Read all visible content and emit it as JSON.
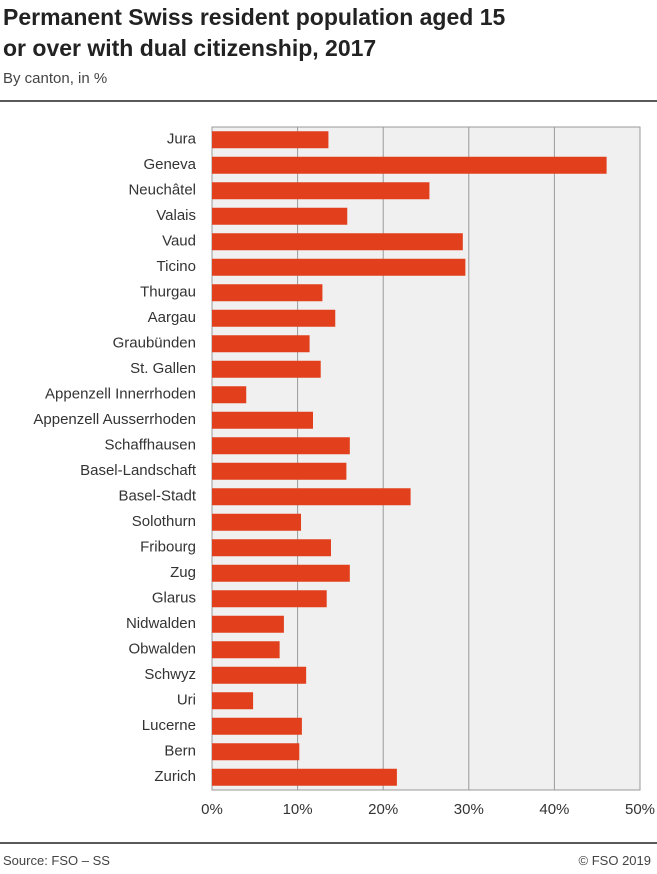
{
  "chart_data": {
    "type": "bar",
    "orientation": "horizontal",
    "title": "Permanent Swiss resident population aged 15 or over with dual citizenship, 2017",
    "subtitle": "By canton, in %",
    "source": "Source: FSO – SS",
    "copyright": "© FSO 2019",
    "categories": [
      "Jura",
      "Geneva",
      "Neuchâtel",
      "Valais",
      "Vaud",
      "Ticino",
      "Thurgau",
      "Aargau",
      "Graubünden",
      "St. Gallen",
      "Appenzell Innerrhoden",
      "Appenzell Ausserrhoden",
      "Schaffhausen",
      "Basel-Landschaft",
      "Basel-Stadt",
      "Solothurn",
      "Fribourg",
      "Zug",
      "Glarus",
      "Nidwalden",
      "Obwalden",
      "Schwyz",
      "Uri",
      "Lucerne",
      "Bern",
      "Zurich"
    ],
    "values": [
      13.6,
      46.1,
      25.4,
      15.8,
      29.3,
      29.6,
      12.9,
      14.4,
      11.4,
      12.7,
      4.0,
      11.8,
      16.1,
      15.7,
      23.2,
      10.4,
      13.9,
      16.1,
      13.4,
      8.4,
      7.9,
      11.0,
      4.8,
      10.5,
      10.2,
      21.6
    ],
    "color": "#e2401c",
    "xlim": [
      0,
      50
    ],
    "xticks": [
      {
        "value": 0,
        "label": "0%"
      },
      {
        "value": 10,
        "label": "10%"
      },
      {
        "value": 20,
        "label": "20%"
      },
      {
        "value": 30,
        "label": "30%"
      },
      {
        "value": 40,
        "label": "40%"
      },
      {
        "value": 50,
        "label": "50%"
      }
    ],
    "grid": true
  }
}
